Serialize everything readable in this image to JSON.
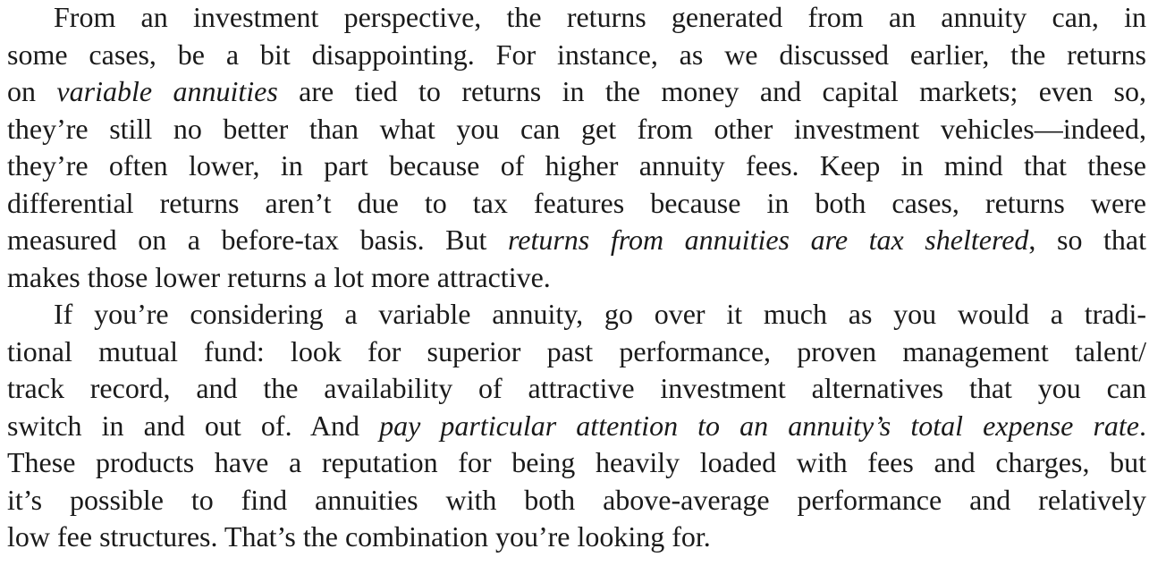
{
  "paragraphs": [
    {
      "lines": [
        [
          "From an investment perspective, the returns generated from an annuity can, in"
        ],
        [
          "some cases, be a bit disappointing. For instance, as we discussed earlier, the returns"
        ],
        [
          "on ",
          "variable annuities",
          " are tied to returns in the money and capital markets; even so,"
        ],
        [
          "they’re still no better than what you can get from other investment vehicles—indeed,"
        ],
        [
          "they’re often lower, in part because of higher annuity fees. Keep in mind that these"
        ],
        [
          "differential returns aren’t due to tax features because in both cases, returns were"
        ],
        [
          "measured on a before-tax basis. But ",
          "returns from annuities are tax sheltered",
          ", so that"
        ],
        [
          "makes those lower returns a lot more attractive."
        ]
      ]
    },
    {
      "lines": [
        [
          "If you’re considering a variable annuity, go over it much as you would a tradi-"
        ],
        [
          "tional mutual fund: look for superior past performance, proven management talent/"
        ],
        [
          "track record, and the availability of attractive investment alternatives that you can"
        ],
        [
          "switch in and out of. And ",
          "pay particular attention to an annuity’s total expense rate",
          "."
        ],
        [
          "These products have a reputation for being heavily loaded with fees and charges, but"
        ],
        [
          "it’s possible to find annuities with both above-average performance and relatively"
        ],
        [
          "low fee structures. That’s the combination you’re looking for."
        ]
      ]
    }
  ]
}
